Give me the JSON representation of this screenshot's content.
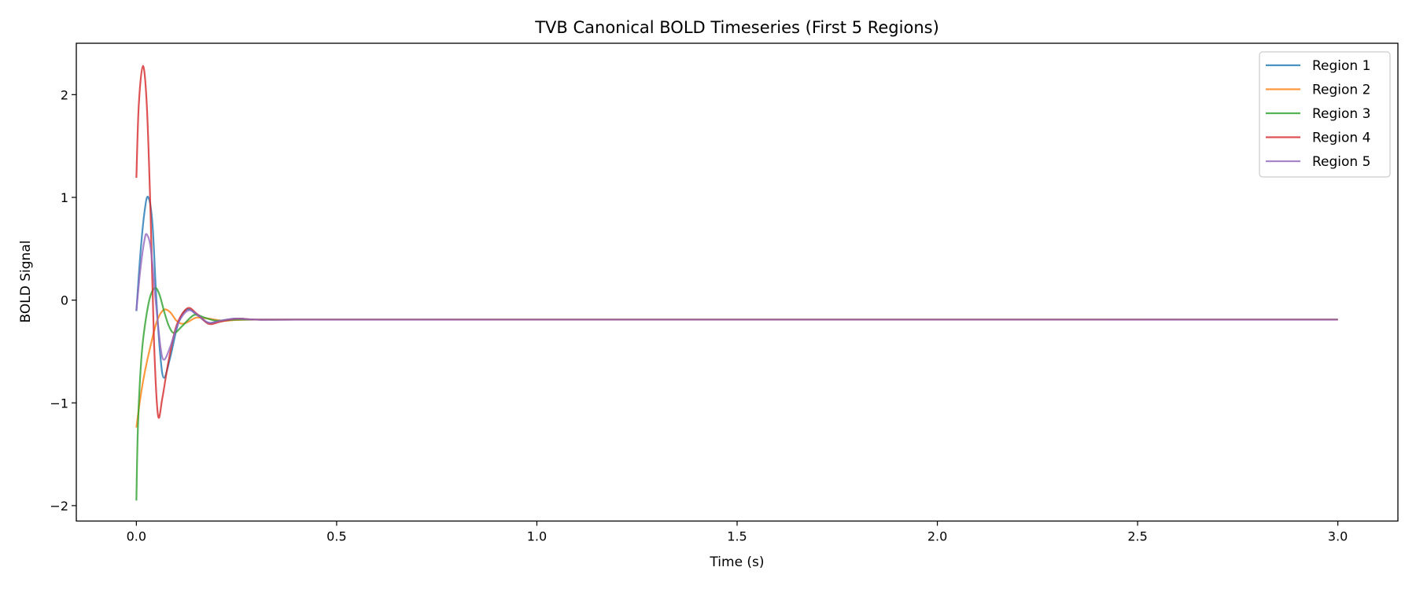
{
  "chart_data": {
    "type": "line",
    "title": "TVB Canonical BOLD Timeseries (First 5 Regions)",
    "xlabel": "Time (s)",
    "ylabel": "BOLD Signal",
    "xlim": [
      -0.15,
      3.15
    ],
    "ylim": [
      -2.15,
      2.5
    ],
    "xticks": [
      0.0,
      0.5,
      1.0,
      1.5,
      2.0,
      2.5,
      3.0
    ],
    "xtick_labels": [
      "0.0",
      "0.5",
      "1.0",
      "1.5",
      "2.0",
      "2.5",
      "3.0"
    ],
    "yticks": [
      -2,
      -1,
      0,
      1,
      2
    ],
    "ytick_labels": [
      "−2",
      "−1",
      "0",
      "1",
      "2"
    ],
    "grid": false,
    "legend_placement": "top-right",
    "series": [
      {
        "name": "Region 1",
        "color": "#1f77b4",
        "x": [
          0,
          0.01,
          0.02,
          0.029,
          0.04,
          0.05,
          0.06,
          0.069,
          0.085,
          0.105,
          0.127,
          0.15,
          0.18,
          0.21,
          0.25,
          0.3,
          0.4,
          3.0
        ],
        "y": [
          -0.107,
          0.45,
          0.85,
          1.005,
          0.75,
          0.0,
          -0.55,
          -0.756,
          -0.55,
          -0.22,
          -0.09,
          -0.14,
          -0.22,
          -0.2,
          -0.18,
          -0.19,
          -0.19,
          -0.19
        ]
      },
      {
        "name": "Region 2",
        "color": "#ff7f0e",
        "x": [
          0,
          0.01,
          0.02,
          0.035,
          0.05,
          0.062,
          0.072,
          0.085,
          0.1,
          0.114,
          0.13,
          0.15,
          0.18,
          0.22,
          0.3,
          3.0
        ],
        "y": [
          -1.24,
          -0.95,
          -0.72,
          -0.45,
          -0.22,
          -0.12,
          -0.09,
          -0.12,
          -0.2,
          -0.23,
          -0.21,
          -0.17,
          -0.18,
          -0.2,
          -0.19,
          -0.19
        ]
      },
      {
        "name": "Region 3",
        "color": "#2ca02c",
        "x": [
          0,
          0.003,
          0.008,
          0.015,
          0.025,
          0.035,
          0.047,
          0.058,
          0.07,
          0.082,
          0.095,
          0.115,
          0.144,
          0.17,
          0.2,
          0.25,
          0.3,
          3.0
        ],
        "y": [
          -1.95,
          -1.35,
          -0.85,
          -0.45,
          -0.15,
          0.04,
          0.12,
          0.05,
          -0.12,
          -0.26,
          -0.32,
          -0.25,
          -0.145,
          -0.17,
          -0.2,
          -0.19,
          -0.19,
          -0.19
        ]
      },
      {
        "name": "Region 4",
        "color": "#d62728",
        "x": [
          0,
          0.006,
          0.0163,
          0.026,
          0.035,
          0.044,
          0.054,
          0.065,
          0.08,
          0.1,
          0.127,
          0.15,
          0.18,
          0.21,
          0.25,
          0.3,
          0.4,
          3.0
        ],
        "y": [
          1.19,
          1.9,
          2.28,
          1.9,
          0.9,
          -0.4,
          -1.12,
          -0.95,
          -0.6,
          -0.25,
          -0.08,
          -0.13,
          -0.23,
          -0.21,
          -0.18,
          -0.19,
          -0.19,
          -0.19
        ]
      },
      {
        "name": "Region 5",
        "color": "#9467bd",
        "x": [
          0,
          0.01,
          0.02,
          0.026,
          0.036,
          0.048,
          0.06,
          0.069,
          0.085,
          0.105,
          0.13,
          0.155,
          0.18,
          0.21,
          0.25,
          0.3,
          0.4,
          3.0
        ],
        "y": [
          -0.1,
          0.3,
          0.58,
          0.64,
          0.5,
          0.0,
          -0.45,
          -0.58,
          -0.45,
          -0.22,
          -0.1,
          -0.15,
          -0.22,
          -0.2,
          -0.18,
          -0.19,
          -0.19,
          -0.19
        ]
      }
    ]
  }
}
